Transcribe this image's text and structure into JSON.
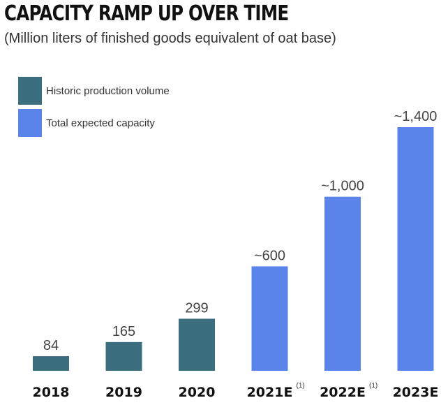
{
  "title": "CAPACITY RAMP UP OVER TIME",
  "subtitle": "(Million liters of finished goods equivalent of oat base)",
  "legend": [
    {
      "label": "Historic production volume",
      "color": "#3b6e7e"
    },
    {
      "label": "Total expected capacity",
      "color": "#5b84ea"
    }
  ],
  "chart_data": {
    "type": "bar",
    "title": "CAPACITY RAMP UP OVER TIME",
    "subtitle": "(Million liters of finished goods equivalent of oat base)",
    "categories": [
      "2018",
      "2019",
      "2020",
      "2021E",
      "2022E",
      "2023E"
    ],
    "category_notes": [
      "",
      "",
      "",
      "(1)",
      "(1)",
      ""
    ],
    "values": [
      84,
      165,
      299,
      600,
      1000,
      1400
    ],
    "value_labels": [
      "84",
      "165",
      "299",
      "~600",
      "~1,000",
      "~1,400"
    ],
    "series_kind": [
      "historic",
      "historic",
      "historic",
      "expected",
      "expected",
      "expected"
    ],
    "colors": {
      "historic": "#3b6e7e",
      "expected": "#5b84ea"
    },
    "xlabel": "",
    "ylabel": "",
    "ylim": [
      0,
      1400
    ],
    "grid": false,
    "legend_position": "top-left"
  }
}
